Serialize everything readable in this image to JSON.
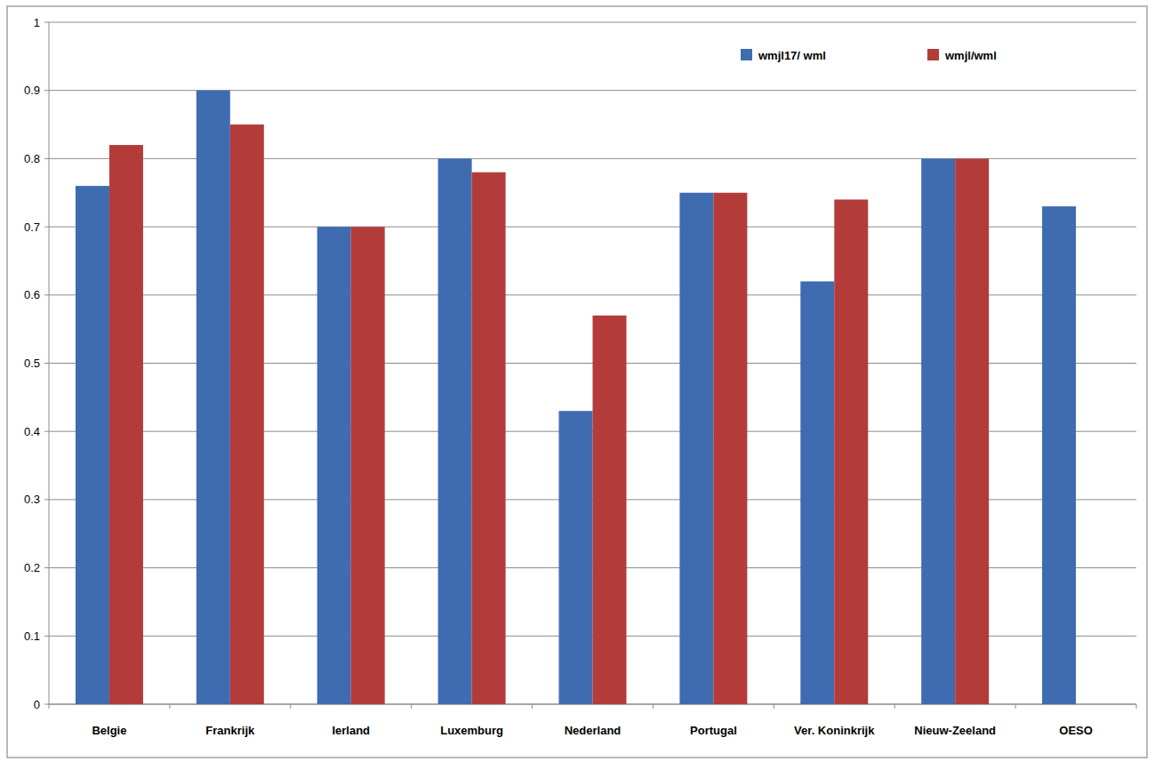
{
  "chart_data": {
    "type": "bar",
    "categories": [
      "Belgie",
      "Frankrijk",
      "Ierland",
      "Luxemburg",
      "Nederland",
      "Portugal",
      "Ver. Koninkrijk",
      "Nieuw-Zeeland",
      "OESO"
    ],
    "series": [
      {
        "name": "wmjl17/ wml",
        "color": "#3f6cb1",
        "values": [
          0.76,
          0.9,
          0.7,
          0.8,
          0.43,
          0.75,
          0.62,
          0.8,
          0.73
        ]
      },
      {
        "name": "wmjl/wml",
        "color": "#b33c3a",
        "values": [
          0.82,
          0.85,
          0.7,
          0.78,
          0.57,
          0.75,
          0.74,
          0.8,
          null
        ]
      }
    ],
    "ylim": [
      0,
      1
    ],
    "yticks": [
      0,
      0.1,
      0.2,
      0.3,
      0.4,
      0.5,
      0.6,
      0.7,
      0.8,
      0.9,
      1
    ],
    "grid": true,
    "legend": "top-right"
  }
}
